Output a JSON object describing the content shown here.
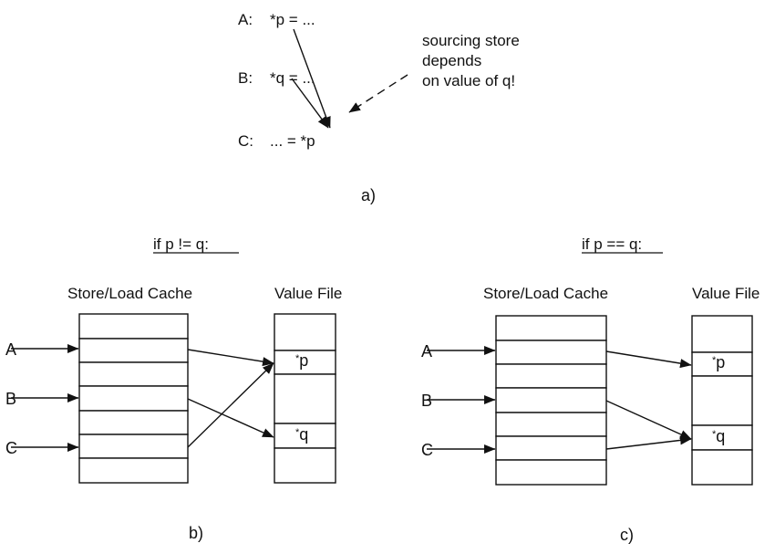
{
  "part_a": {
    "lines": [
      {
        "label": "A:",
        "code": "*p = ..."
      },
      {
        "label": "B:",
        "code": "*q = ..."
      },
      {
        "label": "C:",
        "code": "... = *p"
      }
    ],
    "note": [
      "sourcing store",
      "depends",
      "on value of q!"
    ],
    "caption": "a)"
  },
  "panel_b": {
    "heading": "if p != q:",
    "cache_header": "Store/Load Cache",
    "value_header": "Value File",
    "inputs": [
      "A",
      "B",
      "C"
    ],
    "values": [
      "*p",
      "*q"
    ],
    "caption": "b)"
  },
  "panel_c": {
    "heading": "if p == q:",
    "cache_header": "Store/Load Cache",
    "value_header": "Value File",
    "inputs": [
      "A",
      "B",
      "C"
    ],
    "values": [
      "*p",
      "*q"
    ],
    "caption": "c)"
  },
  "colors": {
    "ink": "#111111",
    "background": "#ffffff"
  }
}
